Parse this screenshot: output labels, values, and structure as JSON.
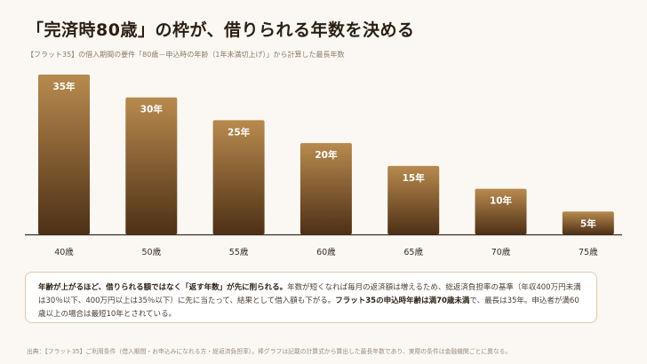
{
  "header": {
    "title": "「完済時80歳」の枠が、借りられる年数を決める",
    "subtitle": "【フラット35】の借入期間の要件「80歳－申込時の年齢（1年未満切上げ）」から計算した最長年数"
  },
  "chart_data": {
    "type": "bar",
    "categories": [
      "40歳",
      "50歳",
      "55歳",
      "60歳",
      "65歳",
      "70歳",
      "75歳"
    ],
    "values": [
      35,
      30,
      25,
      20,
      15,
      10,
      5
    ],
    "value_labels": [
      "35年",
      "30年",
      "25年",
      "20年",
      "15年",
      "10年",
      "5年"
    ],
    "ylim": [
      0,
      35
    ],
    "grid": false,
    "legend": "none",
    "colors": {
      "bar_top": "#b88a4e",
      "bar_bottom": "#4e3016",
      "axis": "#3a2e24"
    }
  },
  "note": {
    "lead": "年齢が上がるほど、借りられる額ではなく「返す年数」が先に削られる。",
    "body1": "年数が短くなれば毎月の返済額は増えるため、総返済負担率の基準（年収400万円未満は30％以下、400万円以上は35％以下）に先に当たって、結果として借入額も下がる。",
    "emph": "フラット35の申込時年齢は満70歳未満",
    "body2": "で、最長は35年。申込者が満60歳以上の場合は最短10年とされている。"
  },
  "source": "出典：【フラット35】ご利用条件（借入期間・お申込みになれる方・総返済負担率）。棒グラフは記載の計算式から算出した最長年数であり、実際の条件は金融機関ごとに異なる。"
}
